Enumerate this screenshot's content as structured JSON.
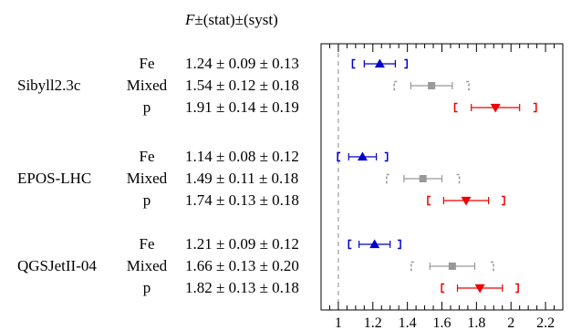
{
  "header": {
    "var": "F",
    "rest": "±(stat)±(syst)"
  },
  "chart_data": {
    "type": "scatter",
    "xlim": [
      0.9,
      2.3
    ],
    "xticks": [
      1,
      1.2,
      1.4,
      1.6,
      1.8,
      2,
      2.2
    ],
    "xtick_labels": [
      "1",
      "1.2",
      "1.4",
      "1.6",
      "1.8",
      "2",
      "2.2"
    ],
    "reference_line": 1,
    "colors": {
      "Fe": "#0000cc",
      "Mixed": "#999999",
      "p": "#ee0000"
    },
    "groups": [
      {
        "model": "Sibyll2.3c",
        "rows": [
          {
            "composition": "Fe",
            "label": "1.24 ± 0.09 ± 0.13",
            "value": 1.24,
            "stat": 0.09,
            "syst": 0.13
          },
          {
            "composition": "Mixed",
            "label": "1.54 ± 0.12 ± 0.18",
            "value": 1.54,
            "stat": 0.12,
            "syst": 0.18
          },
          {
            "composition": "p",
            "label": "1.91 ± 0.14 ± 0.19",
            "value": 1.91,
            "stat": 0.14,
            "syst": 0.19
          }
        ]
      },
      {
        "model": "EPOS-LHC",
        "rows": [
          {
            "composition": "Fe",
            "label": "1.14 ± 0.08 ± 0.12",
            "value": 1.14,
            "stat": 0.08,
            "syst": 0.12
          },
          {
            "composition": "Mixed",
            "label": "1.49 ± 0.11 ± 0.18",
            "value": 1.49,
            "stat": 0.11,
            "syst": 0.18
          },
          {
            "composition": "p",
            "label": "1.74 ± 0.13 ± 0.18",
            "value": 1.74,
            "stat": 0.13,
            "syst": 0.18
          }
        ]
      },
      {
        "model": "QGSJetII-04",
        "rows": [
          {
            "composition": "Fe",
            "label": "1.21 ± 0.09 ± 0.12",
            "value": 1.21,
            "stat": 0.09,
            "syst": 0.12
          },
          {
            "composition": "Mixed",
            "label": "1.66 ± 0.13 ± 0.20",
            "value": 1.66,
            "stat": 0.13,
            "syst": 0.2
          },
          {
            "composition": "p",
            "label": "1.82 ± 0.13 ± 0.18",
            "value": 1.82,
            "stat": 0.13,
            "syst": 0.18
          }
        ]
      }
    ]
  }
}
